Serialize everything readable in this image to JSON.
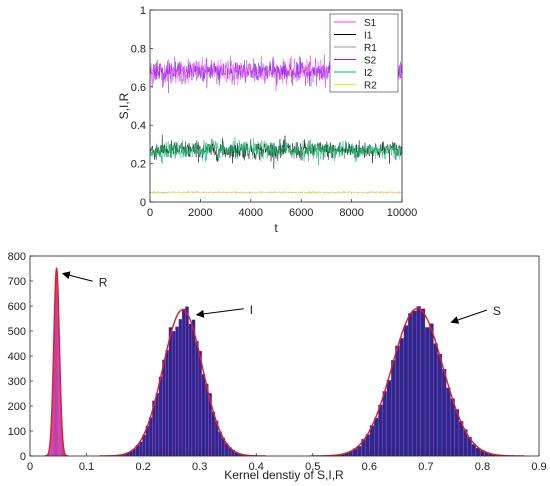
{
  "chart_data": [
    {
      "type": "line",
      "title": "",
      "xlabel": "t",
      "ylabel": "S,I,R",
      "xlim": [
        0,
        10000
      ],
      "ylim": [
        0,
        1
      ],
      "xticks": [
        "0",
        "2000",
        "4000",
        "6000",
        "8000",
        "10000"
      ],
      "yticks": [
        "0",
        "0.2",
        "0.4",
        "0.6",
        "0.8",
        "1"
      ],
      "legend_position": "top-right",
      "series": [
        {
          "name": "S1",
          "mean": 0.68,
          "spread": 0.05,
          "color": "#ff33ff"
        },
        {
          "name": "I1",
          "mean": 0.27,
          "spread": 0.04,
          "color": "#000000"
        },
        {
          "name": "R1",
          "mean": 0.05,
          "spread": 0.004,
          "color": "#999999"
        },
        {
          "name": "S2",
          "mean": 0.68,
          "spread": 0.05,
          "color": "#8a2be2"
        },
        {
          "name": "I2",
          "mean": 0.27,
          "spread": 0.04,
          "color": "#00bb66"
        },
        {
          "name": "R2",
          "mean": 0.05,
          "spread": 0.004,
          "color": "#ffee00"
        }
      ]
    },
    {
      "type": "histogram",
      "title": "",
      "xlabel": "Kernel denstiy of S,I,R",
      "ylabel": "",
      "xlim": [
        0,
        0.9
      ],
      "ylim": [
        0,
        800
      ],
      "xticks": [
        "0",
        "0.1",
        "0.2",
        "0.3",
        "0.4",
        "0.5",
        "0.6",
        "0.7",
        "0.8",
        "0.9"
      ],
      "yticks": [
        "0",
        "100",
        "200",
        "300",
        "400",
        "500",
        "600",
        "700",
        "800"
      ],
      "distributions": [
        {
          "label": "R",
          "center": 0.047,
          "sd": 0.005,
          "peak": 750,
          "bar_color": "#5a3000"
        },
        {
          "label": "I",
          "center": 0.27,
          "sd": 0.035,
          "peak": 585,
          "bar_color": "#2a2a8a"
        },
        {
          "label": "S",
          "center": 0.685,
          "sd": 0.045,
          "peak": 590,
          "bar_color": "#2a2a8a"
        }
      ],
      "kde_color": "#dd2222",
      "bar_edge_color": "#ff44ff",
      "annotations": [
        {
          "text": "R",
          "target_x": 0.058,
          "target_y": 730,
          "text_x": 0.118,
          "text_y": 695
        },
        {
          "text": "I",
          "target_x": 0.295,
          "target_y": 565,
          "text_x": 0.385,
          "text_y": 585
        },
        {
          "text": "S",
          "target_x": 0.745,
          "target_y": 535,
          "text_x": 0.815,
          "text_y": 580
        }
      ]
    }
  ]
}
